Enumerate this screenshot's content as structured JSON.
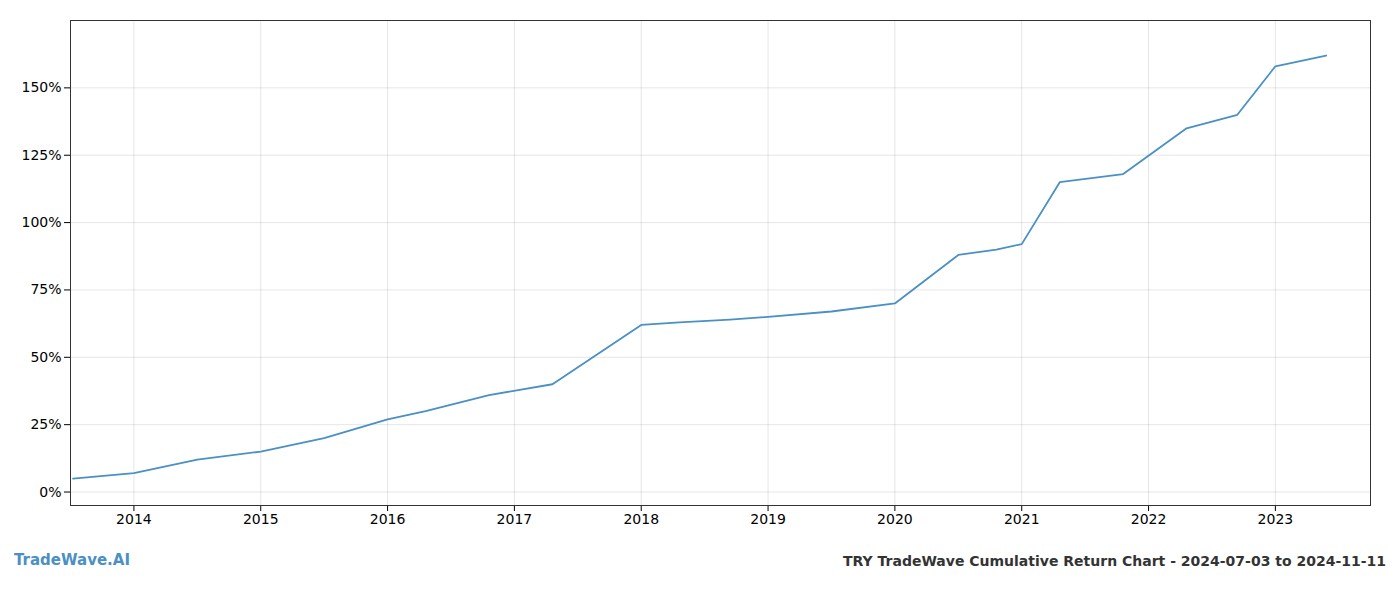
{
  "chart_data": {
    "type": "line",
    "title": "TRY TradeWave Cumulative Return Chart - 2024-07-03 to 2024-11-11",
    "annotations": [
      "TradeWave.AI"
    ],
    "x": [
      2013.52,
      2014.0,
      2014.5,
      2015.0,
      2015.5,
      2016.0,
      2016.3,
      2016.8,
      2017.3,
      2018.0,
      2018.3,
      2018.7,
      2019.0,
      2019.5,
      2020.0,
      2020.5,
      2020.8,
      2021.0,
      2021.3,
      2021.8,
      2022.3,
      2022.7,
      2023.0,
      2023.4
    ],
    "values": [
      5,
      7,
      12,
      15,
      20,
      27,
      30,
      36,
      40,
      62,
      63,
      64,
      65,
      67,
      70,
      88,
      90,
      92,
      115,
      118,
      135,
      140,
      158,
      162
    ],
    "color": "#4a90c4",
    "xlim": [
      2013.5,
      2023.75
    ],
    "xticks": [
      2014,
      2015,
      2016,
      2017,
      2018,
      2019,
      2020,
      2021,
      2022,
      2023
    ],
    "ylim": [
      -5,
      175
    ],
    "yticks": [
      {
        "value": 0,
        "label": "0%"
      },
      {
        "value": 25,
        "label": "25%"
      },
      {
        "value": 50,
        "label": "50%"
      },
      {
        "value": 75,
        "label": "75%"
      },
      {
        "value": 100,
        "label": "100%"
      },
      {
        "value": 125,
        "label": "125%"
      },
      {
        "value": 150,
        "label": "150%"
      }
    ],
    "grid": true
  }
}
